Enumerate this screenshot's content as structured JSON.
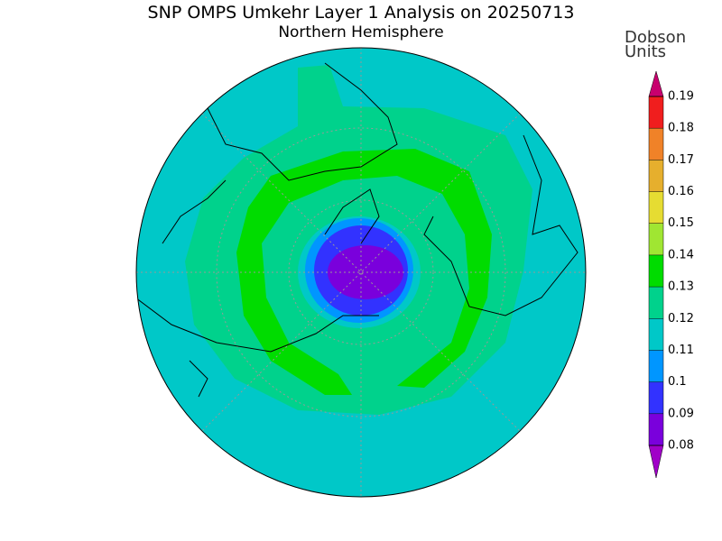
{
  "map": {
    "title": "SNP OMPS Umkehr Layer 1 Analysis on 20250713",
    "subtitle": "Northern Hemisphere",
    "colorbar": {
      "label": "Dobson Units",
      "ticks": [
        0.08,
        0.09,
        0.1,
        0.11,
        0.12,
        0.13,
        0.14,
        0.15,
        0.16,
        0.17,
        0.18,
        0.19
      ],
      "lim": [
        0.08,
        0.19
      ],
      "colors": [
        "#7a00dc",
        "#3232ff",
        "#0096ff",
        "#00c8c8",
        "#00d28c",
        "#00dc00",
        "#a0e632",
        "#e6dc32",
        "#e6af2d",
        "#f08228",
        "#f01e1e"
      ],
      "under_color": "#a000c8",
      "over_color": "#c8006e"
    }
  }
}
